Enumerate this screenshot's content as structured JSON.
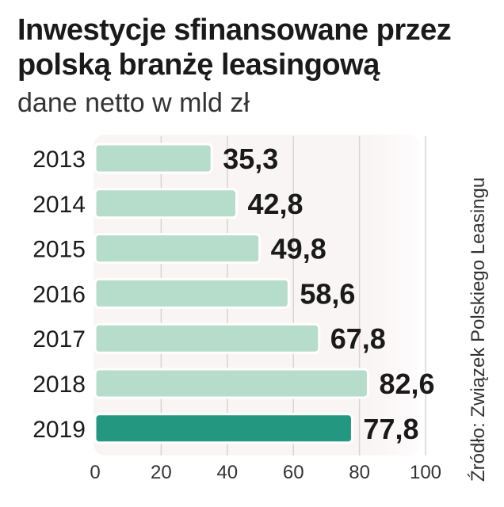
{
  "chart_data": {
    "type": "bar",
    "orientation": "horizontal",
    "title": "Inwestycje sfinansowane przez polską branżę leasingową",
    "subtitle": "dane netto w mld zł",
    "source": "Źródło: Związek Polskiego Leasingu",
    "categories": [
      "2013",
      "2014",
      "2015",
      "2016",
      "2017",
      "2018",
      "2019"
    ],
    "values": [
      35.3,
      42.8,
      49.8,
      58.6,
      67.8,
      82.6,
      77.8
    ],
    "value_labels": [
      "35,3",
      "42,8",
      "49,8",
      "58,6",
      "67,8",
      "82,6",
      "77,8"
    ],
    "xlim": [
      0,
      100
    ],
    "xticks": [
      0,
      20,
      40,
      60,
      80,
      100
    ],
    "grid": true,
    "colors": {
      "bar": "#b6dccb",
      "bar_highlight": "#23977f",
      "plot_background": "#faf5f5"
    },
    "highlight_category": "2019"
  }
}
